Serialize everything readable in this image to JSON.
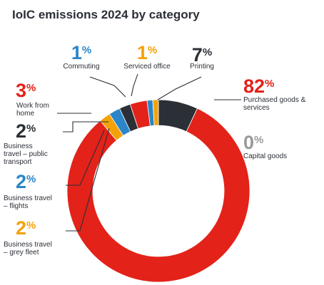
{
  "title": "IoIC emissions 2024 by category",
  "chart_data": {
    "type": "pie",
    "donut": true,
    "unit": "%",
    "legend": "none",
    "categories": [
      {
        "name": "Printing",
        "value": 7,
        "label": [
          "Printing"
        ],
        "color": "#2b2f36"
      },
      {
        "name": "Purchased goods & services",
        "value": 82,
        "label": [
          "Purchased goods &",
          "services"
        ],
        "color": "#e32219"
      },
      {
        "name": "Capital goods",
        "value": 0,
        "label": [
          "Capital goods"
        ],
        "color": "#9a9a9a"
      },
      {
        "name": "Business travel – grey fleet",
        "value": 2,
        "label": [
          "Business travel",
          "– grey fleet"
        ],
        "color": "#f5a20a"
      },
      {
        "name": "Business travel – flights",
        "value": 2,
        "label": [
          "Business travel",
          "– flights"
        ],
        "color": "#2a86c8"
      },
      {
        "name": "Business travel – public transport",
        "value": 2,
        "label": [
          "Business",
          "travel – public",
          "transport"
        ],
        "color": "#2b2f36"
      },
      {
        "name": "Work from home",
        "value": 3,
        "label": [
          "Work from",
          "home"
        ],
        "color": "#e32219"
      },
      {
        "name": "Commuting",
        "value": 1,
        "label": [
          "Commuting"
        ],
        "color": "#2a86c8"
      },
      {
        "name": "Serviced office",
        "value": 1,
        "label": [
          "Serviced office"
        ],
        "color": "#f5a20a"
      }
    ]
  }
}
